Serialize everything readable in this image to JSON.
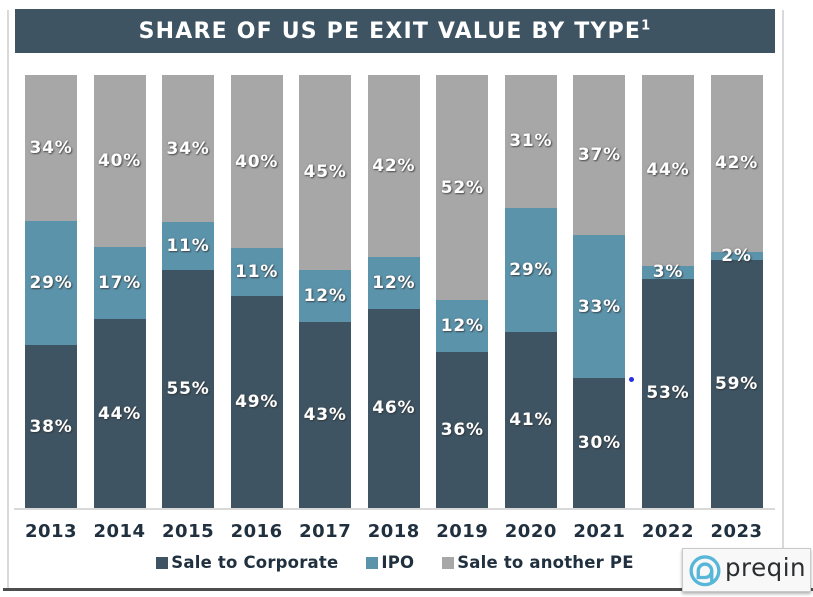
{
  "title": {
    "text": "SHARE OF US PE EXIT VALUE BY TYPE",
    "superscript": "1"
  },
  "chart_data": {
    "type": "bar",
    "variant": "stacked-100-percent",
    "title": "SHARE OF US PE EXIT VALUE BY TYPE¹",
    "categories": [
      "2013",
      "2014",
      "2015",
      "2016",
      "2017",
      "2018",
      "2019",
      "2020",
      "2021",
      "2022",
      "2023"
    ],
    "series": [
      {
        "name": "Sale to Corporate",
        "color": "#3e5463",
        "values": [
          38,
          44,
          55,
          49,
          43,
          46,
          36,
          41,
          30,
          53,
          59
        ]
      },
      {
        "name": "IPO",
        "color": "#5b93ab",
        "values": [
          29,
          17,
          11,
          11,
          12,
          12,
          12,
          29,
          33,
          3,
          2
        ]
      },
      {
        "name": "Sale to another PE",
        "color": "#a7a7a7",
        "values": [
          34,
          40,
          34,
          40,
          45,
          42,
          52,
          31,
          37,
          44,
          42
        ]
      }
    ],
    "value_suffix": "%",
    "xlabel": "",
    "ylabel": "",
    "ylim": [
      0,
      100
    ],
    "grid": false,
    "legend_position": "bottom",
    "data_labels": "inside-center, white bold"
  },
  "branding": {
    "logo_text": "preqin",
    "logo_icon": "preqin-at-mark",
    "icon_color": "#58b6d8",
    "text_color": "#2b2e31"
  },
  "colors": {
    "title_band": "#3e5463",
    "background": "#ffffff",
    "axis_text": "#20303f",
    "bar_label_text": "#ffffff",
    "frame_line": "#d9d9d9",
    "bottom_rule": "#4d4d4d"
  }
}
